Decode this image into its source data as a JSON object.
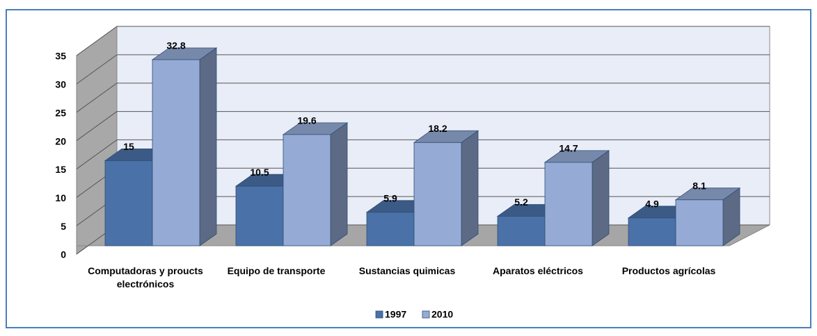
{
  "chart_data": {
    "type": "bar3d",
    "categories": [
      "Computadoras y proucts electrónicos",
      "Equipo de transporte",
      "Sustancias quimicas",
      "Aparatos eléctricos",
      "Productos agrícolas"
    ],
    "series": [
      {
        "name": "1997",
        "color": "#4a72a8",
        "values": [
          15,
          10.5,
          5.9,
          5.2,
          4.9
        ]
      },
      {
        "name": "2010",
        "color": "#95abd6",
        "values": [
          32.8,
          19.6,
          18.2,
          14.7,
          8.1
        ]
      }
    ],
    "ylim": [
      0,
      35
    ],
    "yticks": [
      0,
      5,
      10,
      15,
      20,
      25,
      30,
      35
    ],
    "grid": true,
    "legend": "bottom"
  }
}
